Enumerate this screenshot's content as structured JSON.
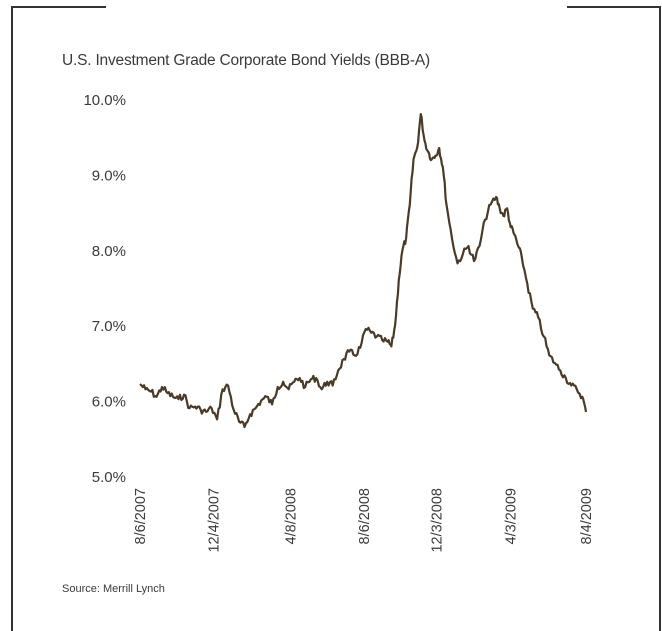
{
  "source": "Source: Merrill Lynch",
  "colors": {
    "line": "#4a3b28",
    "frame": "#333333",
    "text": "#3a3a3a"
  },
  "chart_data": {
    "type": "line",
    "title": "U.S. Investment Grade Corporate Bond Yields (BBB-A)",
    "xlabel": "",
    "ylabel": "",
    "ylim": [
      5.0,
      10.0
    ],
    "yticks": [
      5.0,
      6.0,
      7.0,
      8.0,
      9.0,
      10.0
    ],
    "ytick_labels": [
      "5.0%",
      "6.0%",
      "7.0%",
      "8.0%",
      "9.0%",
      "10.0%"
    ],
    "xlim": [
      "2007-08-06",
      "2009-08-04"
    ],
    "xtick_dates": [
      "2007-08-06",
      "2007-12-04",
      "2008-04-08",
      "2008-08-06",
      "2008-12-03",
      "2009-04-03",
      "2009-08-04"
    ],
    "xtick_labels": [
      "8/6/2007",
      "12/4/2007",
      "4/8/2008",
      "8/6/2008",
      "12/3/2008",
      "4/3/2009",
      "8/4/2009"
    ],
    "grid": false,
    "legend": "none",
    "series": [
      {
        "name": "",
        "x": [
          "2007-08-06",
          "2007-08-15",
          "2007-08-24",
          "2007-09-02",
          "2007-09-11",
          "2007-09-20",
          "2007-09-29",
          "2007-10-08",
          "2007-10-17",
          "2007-10-26",
          "2007-11-04",
          "2007-11-13",
          "2007-11-22",
          "2007-12-01",
          "2007-12-10",
          "2007-12-19",
          "2007-12-28",
          "2008-01-06",
          "2008-01-15",
          "2008-01-24",
          "2008-02-02",
          "2008-02-11",
          "2008-02-20",
          "2008-02-29",
          "2008-03-09",
          "2008-03-18",
          "2008-03-27",
          "2008-04-05",
          "2008-04-14",
          "2008-04-23",
          "2008-05-02",
          "2008-05-11",
          "2008-05-20",
          "2008-05-29",
          "2008-06-07",
          "2008-06-16",
          "2008-06-25",
          "2008-07-04",
          "2008-07-13",
          "2008-07-22",
          "2008-07-31",
          "2008-08-09",
          "2008-08-18",
          "2008-08-27",
          "2008-09-05",
          "2008-09-14",
          "2008-09-20",
          "2008-09-26",
          "2008-10-02",
          "2008-10-08",
          "2008-10-14",
          "2008-10-20",
          "2008-10-26",
          "2008-11-01",
          "2008-11-07",
          "2008-11-13",
          "2008-11-19",
          "2008-11-25",
          "2008-12-01",
          "2008-12-07",
          "2008-12-13",
          "2008-12-19",
          "2008-12-28",
          "2009-01-06",
          "2009-01-15",
          "2009-01-24",
          "2009-02-02",
          "2009-02-11",
          "2009-02-20",
          "2009-03-01",
          "2009-03-10",
          "2009-03-16",
          "2009-03-22",
          "2009-03-28",
          "2009-04-03",
          "2009-04-09",
          "2009-04-15",
          "2009-04-21",
          "2009-04-30",
          "2009-05-09",
          "2009-05-18",
          "2009-05-27",
          "2009-06-05",
          "2009-06-14",
          "2009-06-23",
          "2009-07-02",
          "2009-07-11",
          "2009-07-20",
          "2009-07-29",
          "2009-08-04"
        ],
        "y": [
          6.22,
          6.15,
          6.12,
          6.05,
          6.18,
          6.1,
          6.05,
          6.02,
          6.08,
          5.9,
          5.92,
          5.88,
          5.85,
          5.9,
          5.75,
          6.15,
          6.2,
          5.88,
          5.72,
          5.65,
          5.82,
          5.9,
          6.0,
          6.05,
          5.95,
          6.18,
          6.25,
          6.15,
          6.25,
          6.3,
          6.18,
          6.28,
          6.3,
          6.15,
          6.25,
          6.2,
          6.4,
          6.55,
          6.65,
          6.6,
          6.7,
          6.95,
          6.9,
          6.85,
          6.8,
          6.78,
          6.72,
          7.0,
          7.6,
          8.0,
          8.15,
          8.6,
          9.2,
          9.35,
          9.8,
          9.45,
          9.3,
          9.2,
          9.25,
          9.35,
          9.1,
          8.6,
          8.15,
          7.82,
          7.95,
          8.05,
          7.85,
          8.05,
          8.4,
          8.6,
          8.7,
          8.55,
          8.45,
          8.55,
          8.3,
          8.2,
          8.05,
          7.9,
          7.55,
          7.22,
          7.1,
          6.85,
          6.6,
          6.5,
          6.4,
          6.3,
          6.2,
          6.15,
          6.05,
          5.85
        ]
      }
    ]
  }
}
